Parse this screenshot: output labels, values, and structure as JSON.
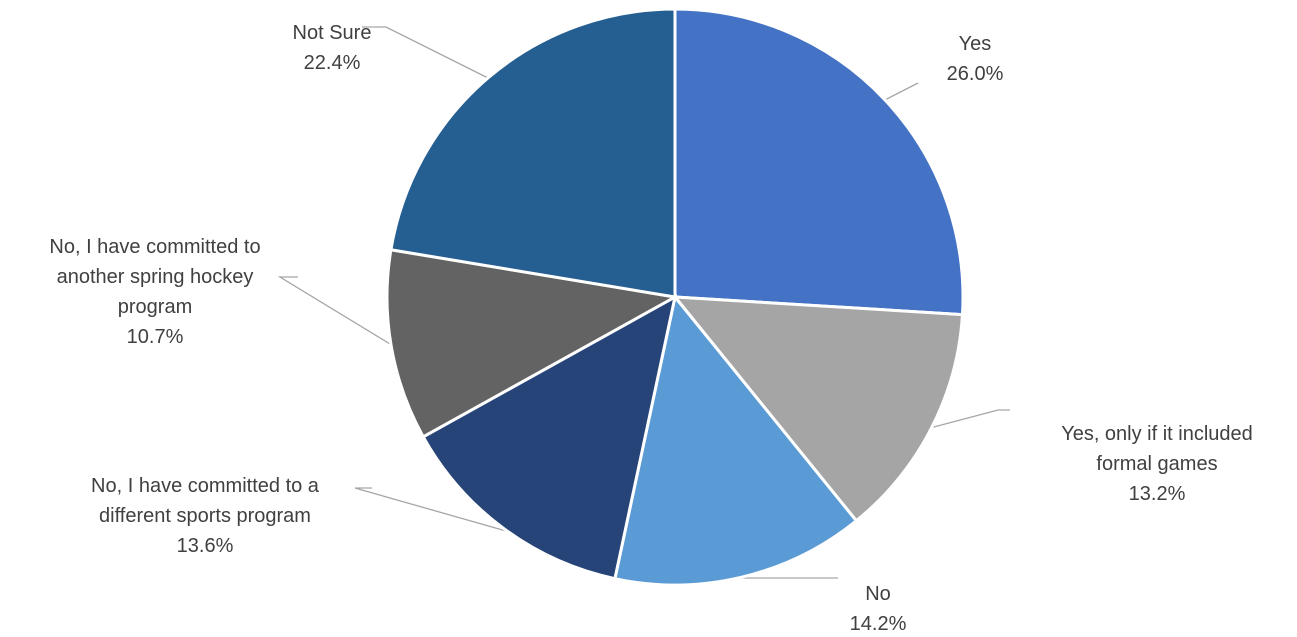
{
  "chart_data": {
    "type": "pie",
    "title": "",
    "start": "12 o'clock, clockwise",
    "slices": [
      {
        "label": "Yes",
        "label_lines": [
          "Yes"
        ],
        "value": 26.0,
        "value_label": "26.0%",
        "color": "#4472c4"
      },
      {
        "label": "Yes, only if it included formal games",
        "label_lines": [
          "Yes, only if it included",
          "formal games"
        ],
        "value": 13.2,
        "value_label": "13.2%",
        "color": "#a5a5a5"
      },
      {
        "label": "No",
        "label_lines": [
          "No"
        ],
        "value": 14.2,
        "value_label": "14.2%",
        "color": "#5b9bd5"
      },
      {
        "label": "No, I have committed to a different sports program",
        "label_lines": [
          "No, I have committed to a",
          "different sports program"
        ],
        "value": 13.6,
        "value_label": "13.6%",
        "color": "#264478"
      },
      {
        "label": "No, I have committed to another spring hockey program",
        "label_lines": [
          "No, I have committed to",
          "another spring hockey",
          "program"
        ],
        "value": 10.7,
        "value_label": "10.7%",
        "color": "#636363"
      },
      {
        "label": "Not Sure",
        "label_lines": [
          "Not Sure"
        ],
        "value": 22.4,
        "value_label": "22.4%",
        "color": "#255e91"
      }
    ]
  }
}
